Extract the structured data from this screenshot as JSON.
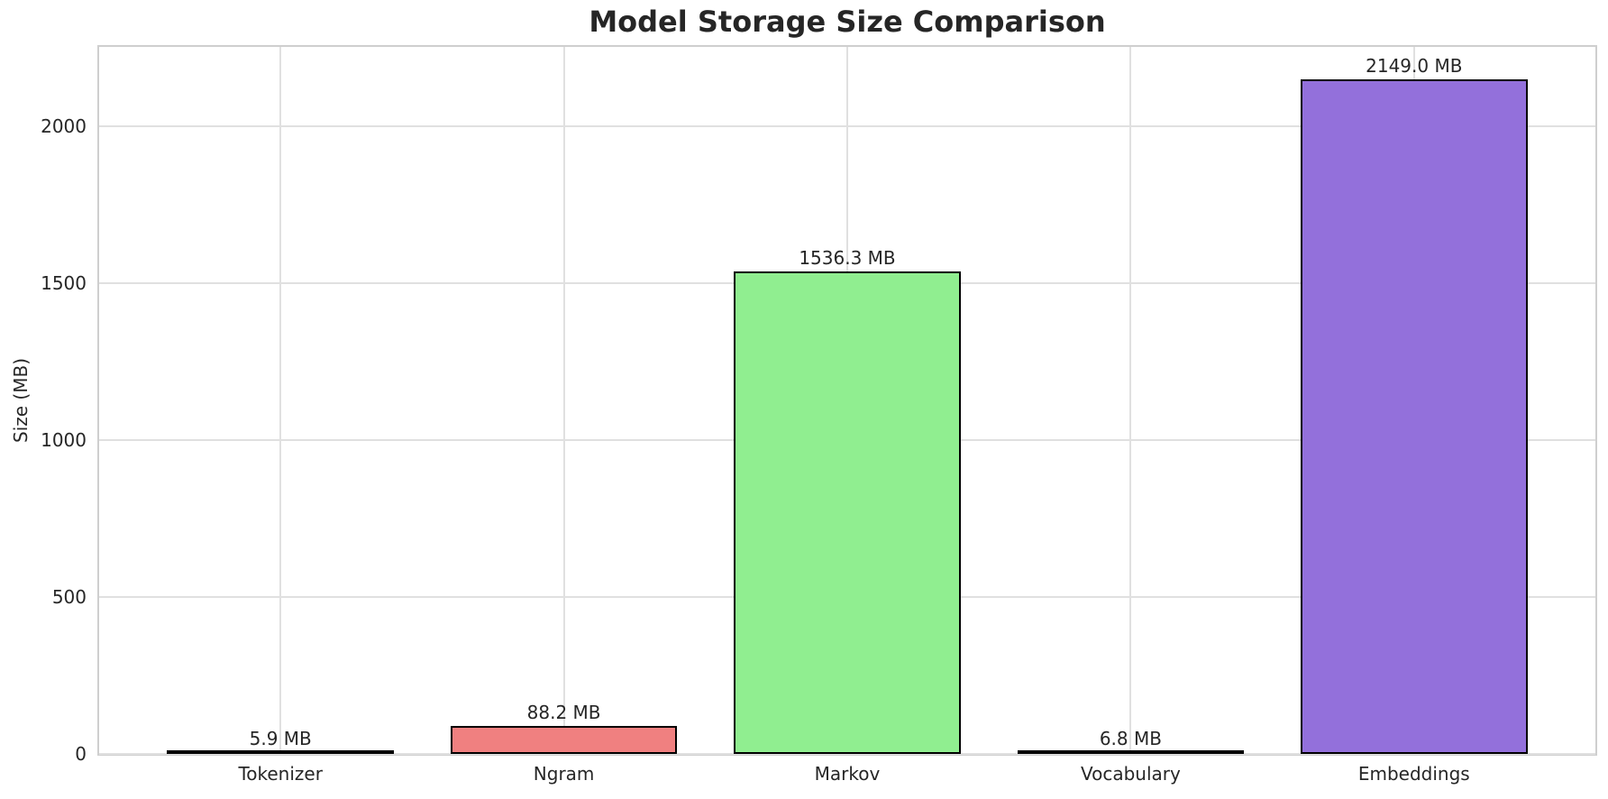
{
  "chart_data": {
    "type": "bar",
    "title": "Model Storage Size Comparison",
    "xlabel": "",
    "ylabel": "Size (MB)",
    "categories": [
      "Tokenizer",
      "Ngram",
      "Markov",
      "Vocabulary",
      "Embeddings"
    ],
    "values": [
      5.9,
      88.2,
      1536.3,
      6.8,
      2149.0
    ],
    "bar_labels": [
      "5.9 MB",
      "88.2 MB",
      "1536.3 MB",
      "6.8 MB",
      "2149.0 MB"
    ],
    "bar_colors": [
      "#87CEEB",
      "#F08080",
      "#90EE90",
      "#FFD700",
      "#9370DB"
    ],
    "bar_edge_color": "#000000",
    "yticks": [
      0,
      500,
      1000,
      1500,
      2000
    ],
    "ylim": [
      0,
      2253
    ],
    "grid": true,
    "legend_position": "none",
    "background_color": "#ffffff"
  }
}
